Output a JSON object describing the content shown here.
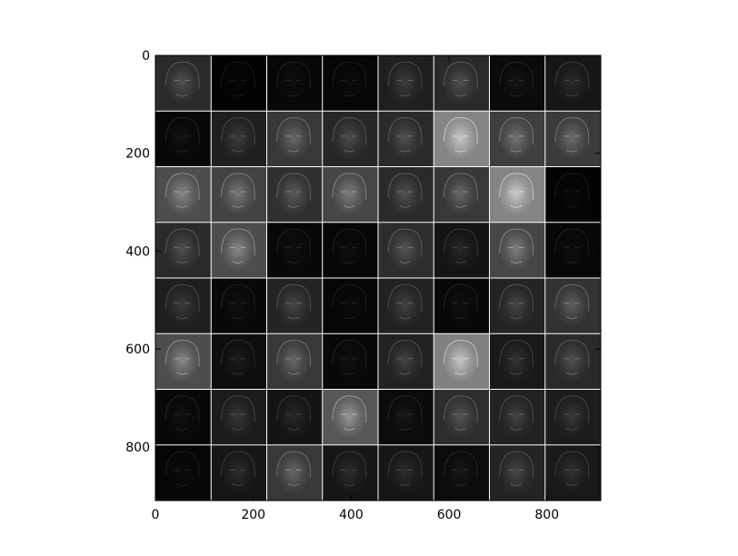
{
  "chart_data": {
    "type": "heatmap",
    "title": "",
    "xlabel": "",
    "ylabel": "",
    "description_grid": {
      "rows": 8,
      "cols": 8
    },
    "xlim": [
      0,
      910
    ],
    "ylim": [
      910,
      0
    ],
    "xticks": [
      {
        "value": 0,
        "label": "0"
      },
      {
        "value": 200,
        "label": "200"
      },
      {
        "value": 400,
        "label": "400"
      },
      {
        "value": 600,
        "label": "600"
      },
      {
        "value": 800,
        "label": "800"
      }
    ],
    "yticks": [
      {
        "value": 0,
        "label": "0"
      },
      {
        "value": 200,
        "label": "200"
      },
      {
        "value": 400,
        "label": "400"
      },
      {
        "value": 600,
        "label": "600"
      },
      {
        "value": 800,
        "label": "800"
      }
    ],
    "tile_brightness": [
      [
        0.3,
        0.02,
        0.05,
        0.04,
        0.22,
        0.3,
        0.07,
        0.16
      ],
      [
        0.06,
        0.22,
        0.4,
        0.28,
        0.3,
        0.95,
        0.45,
        0.42
      ],
      [
        0.55,
        0.48,
        0.34,
        0.5,
        0.3,
        0.4,
        0.95,
        0.03
      ],
      [
        0.3,
        0.55,
        0.06,
        0.05,
        0.32,
        0.14,
        0.5,
        0.05
      ],
      [
        0.22,
        0.06,
        0.26,
        0.04,
        0.24,
        0.06,
        0.26,
        0.36
      ],
      [
        0.55,
        0.1,
        0.4,
        0.06,
        0.24,
        0.92,
        0.18,
        0.3
      ],
      [
        0.06,
        0.2,
        0.14,
        0.62,
        0.08,
        0.32,
        0.24,
        0.2
      ],
      [
        0.04,
        0.16,
        0.4,
        0.16,
        0.16,
        0.08,
        0.26,
        0.18
      ]
    ],
    "grid": false,
    "colormap": "gray"
  }
}
